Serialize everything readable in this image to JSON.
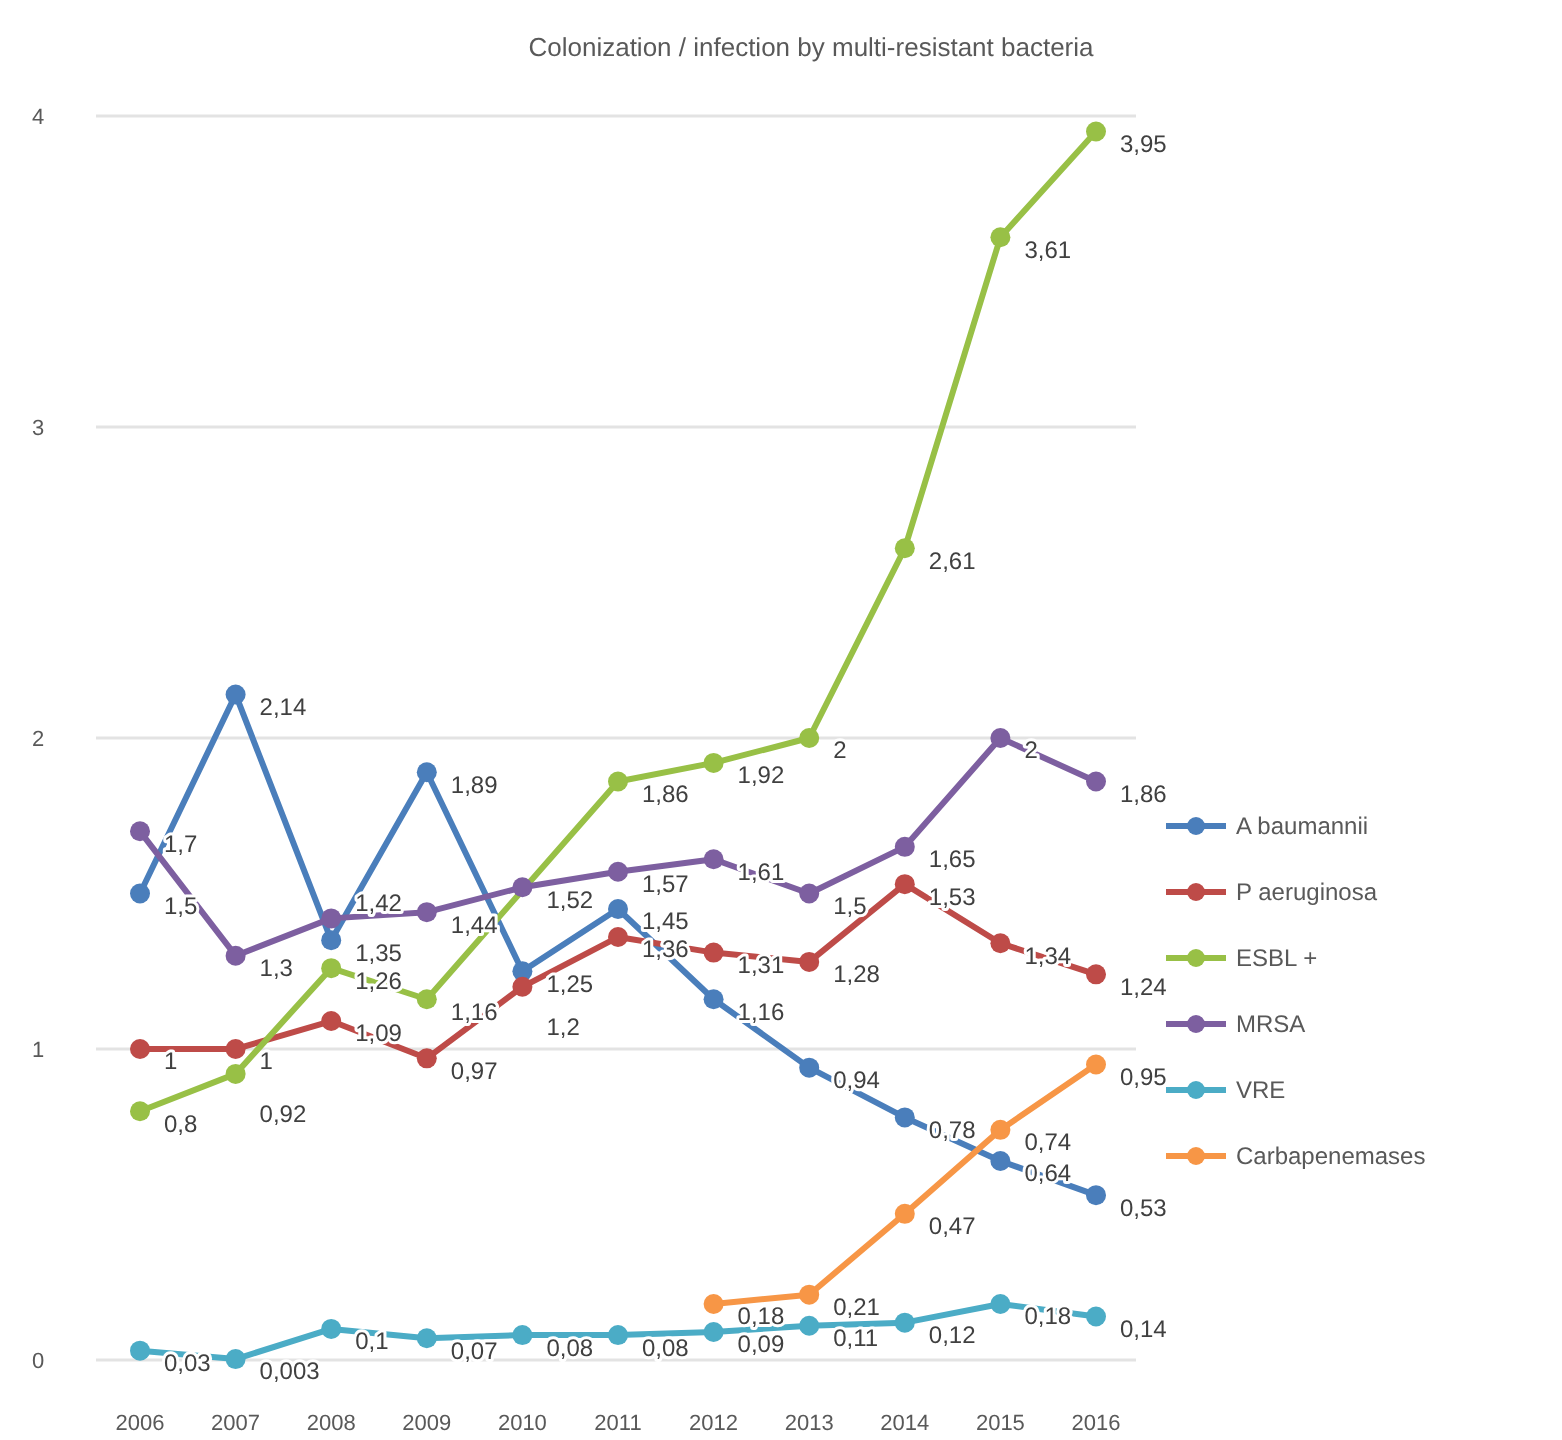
{
  "chart_data": {
    "type": "line",
    "title": "Colonization / infection by multi-resistant bacteria",
    "categories": [
      "2006",
      "2007",
      "2008",
      "2009",
      "2010",
      "2011",
      "2012",
      "2013",
      "2014",
      "2015",
      "2016"
    ],
    "series": [
      {
        "name": "A baumannii",
        "color": "#4a7ebb",
        "values": [
          1.5,
          2.14,
          1.35,
          1.89,
          1.25,
          1.45,
          1.16,
          0.94,
          0.78,
          0.64,
          0.53
        ],
        "value_labels": [
          "1,5",
          "2,14",
          "1,35",
          "1,89",
          "1,25",
          "1,45",
          "1,16",
          "0,94",
          "0,78",
          "0,64",
          "0,53"
        ]
      },
      {
        "name": "P aeruginosa",
        "color": "#be4b48",
        "values": [
          1,
          1,
          1.09,
          0.97,
          1.2,
          1.36,
          1.31,
          1.28,
          1.53,
          1.34,
          1.24
        ],
        "value_labels": [
          "1",
          "1",
          "1,09",
          "0,97",
          "1,2",
          "1,36",
          "1,31",
          "1,28",
          "1,53",
          "1,34",
          "1,24"
        ]
      },
      {
        "name": "ESBL +",
        "color": "#98c046",
        "values": [
          0.8,
          0.92,
          1.26,
          1.16,
          null,
          1.86,
          1.92,
          2,
          2.61,
          3.61,
          3.95
        ],
        "value_labels": [
          "0,8",
          "0,92",
          "1,26",
          "1,16",
          null,
          "1,86",
          "1,92",
          "2",
          "2,61",
          "3,61",
          "3,95"
        ]
      },
      {
        "name": "MRSA",
        "color": "#7d5fa0",
        "values": [
          1.7,
          1.3,
          1.42,
          1.44,
          1.52,
          1.57,
          1.61,
          1.5,
          1.65,
          2,
          1.86
        ],
        "value_labels": [
          "1,7",
          "1,3",
          "1,42",
          "1,44",
          "1,52",
          "1,57",
          "1,61",
          "1,5",
          "1,65",
          "2",
          "1,86"
        ]
      },
      {
        "name": "VRE",
        "color": "#4bacc6",
        "values": [
          0.03,
          0.003,
          0.1,
          0.07,
          0.08,
          0.08,
          0.09,
          0.11,
          0.12,
          0.18,
          0.14
        ],
        "value_labels": [
          "0,03",
          "0,003",
          "0,1",
          "0,07",
          "0,08",
          "0,08",
          "0,09",
          "0,11",
          "0,12",
          "0,18",
          "0,14"
        ]
      },
      {
        "name": "Carbapenemases",
        "color": "#f79646",
        "values": [
          null,
          null,
          null,
          null,
          null,
          null,
          0.18,
          0.21,
          0.47,
          0.74,
          0.95
        ],
        "value_labels": [
          null,
          null,
          null,
          null,
          null,
          null,
          "0,18",
          "0,21",
          "0,47",
          "0,74",
          "0,95"
        ]
      }
    ],
    "ylim": [
      0,
      4
    ],
    "yticks": [
      0,
      1,
      2,
      3,
      4
    ],
    "grid": "y",
    "legend": "right",
    "marker": "circle"
  }
}
